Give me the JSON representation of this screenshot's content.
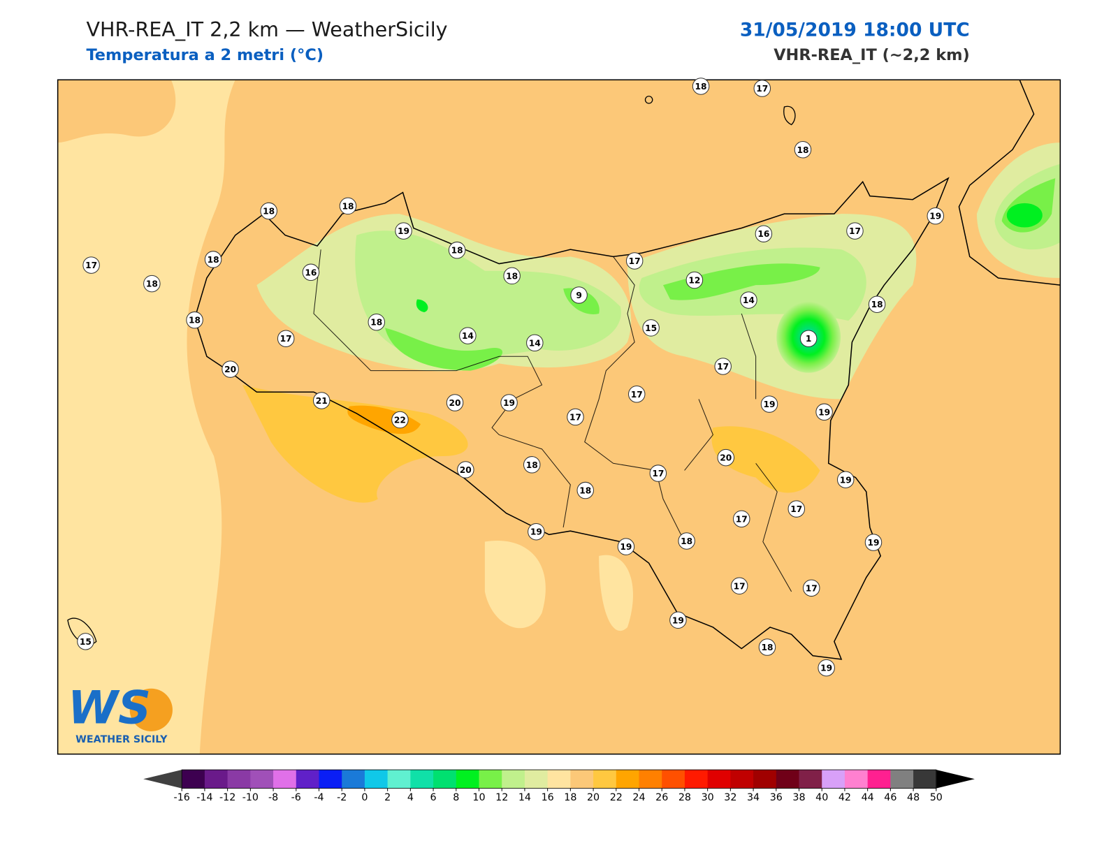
{
  "header": {
    "title": "VHR-REA_IT 2,2 km — WeatherSicily",
    "subtitle": "Temperatura a 2 metri (°C)",
    "date": "31/05/2019 18:00 UTC",
    "model": "VHR-REA_IT (~2,2 km)"
  },
  "map": {
    "station_temperatures": [
      18,
      17,
      18,
      18,
      18,
      19,
      18,
      16,
      17,
      19,
      17,
      18,
      16,
      18,
      18,
      17,
      12,
      9,
      14,
      18,
      18,
      18,
      15,
      17,
      14,
      14,
      1,
      20,
      17,
      21,
      20,
      19,
      22,
      17,
      17,
      19,
      19,
      20,
      20,
      18,
      17,
      18,
      19,
      17,
      17,
      19,
      19,
      18,
      19,
      17,
      17,
      19,
      18,
      19,
      15
    ]
  },
  "logo": {
    "mark": "WS",
    "name": "WEATHER SICILY"
  },
  "colorbar": {
    "ticks": [
      -16,
      -14,
      -12,
      -10,
      -8,
      -6,
      -4,
      -2,
      0,
      2,
      4,
      6,
      8,
      10,
      12,
      14,
      16,
      18,
      20,
      22,
      24,
      26,
      28,
      30,
      32,
      34,
      36,
      38,
      40,
      42,
      44,
      46,
      48,
      50
    ],
    "colors": [
      "#3d0050",
      "#6a1a8a",
      "#8a3aa5",
      "#a050b8",
      "#e070e8",
      "#6020c8",
      "#0a1ef5",
      "#1a7ad8",
      "#10c8e8",
      "#60f0d0",
      "#10e0a8",
      "#00e070",
      "#00f020",
      "#78f048",
      "#c0f08c",
      "#e0eca0",
      "#ffe4a0",
      "#fcc878",
      "#ffc840",
      "#ffa500",
      "#ff8000",
      "#ff5000",
      "#ff1a00",
      "#e00000",
      "#c00000",
      "#a00000",
      "#700018",
      "#802048",
      "#d8a0f8",
      "#ff80d0",
      "#ff2090",
      "#808080",
      "#383838"
    ],
    "under_color": "#404040",
    "over_color": "#000000"
  }
}
